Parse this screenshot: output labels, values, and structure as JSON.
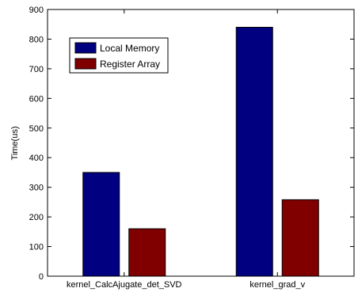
{
  "chart_data": {
    "type": "bar",
    "title": "",
    "xlabel": "",
    "ylabel": "Time(us)",
    "ylim": [
      0,
      900
    ],
    "yticks": [
      0,
      100,
      200,
      300,
      400,
      500,
      600,
      700,
      800,
      900
    ],
    "categories": [
      "kernel_CalcAjugate_det_SVD",
      "kernel_grad_v"
    ],
    "series": [
      {
        "name": "Local Memory",
        "color": "#000080",
        "values": [
          350,
          840
        ]
      },
      {
        "name": "Register Array",
        "color": "#800000",
        "values": [
          160,
          258
        ]
      }
    ],
    "grid": false,
    "legend": {
      "position": "top-left"
    }
  }
}
